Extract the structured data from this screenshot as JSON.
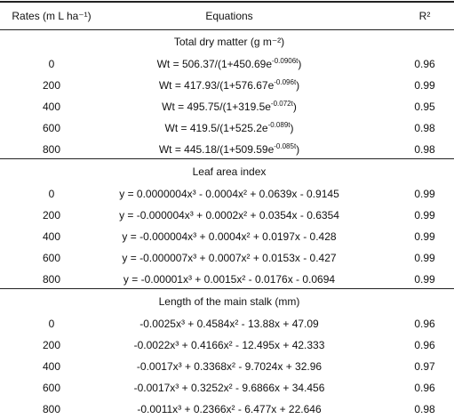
{
  "header": {
    "rates": "Rates (m L ha⁻¹)",
    "equations": "Equations",
    "r2": "R²"
  },
  "sections": [
    {
      "title": "Total dry matter (g m⁻²)",
      "rows": [
        {
          "rate": 0,
          "equation": [
            "Wt = 506.37/(1+450.69e",
            "-0.0906t",
            ")"
          ],
          "r2": 0.96
        },
        {
          "rate": 200,
          "equation": [
            "Wt = 417.93/(1+576.67e",
            "-0.096t",
            ")"
          ],
          "r2": 0.99
        },
        {
          "rate": 400,
          "equation": [
            "Wt = 495.75/(1+319.5e",
            "-0.072t",
            ")"
          ],
          "r2": 0.95
        },
        {
          "rate": 600,
          "equation": [
            "Wt = 419.5/(1+525.2e",
            "-0.089t",
            ")"
          ],
          "r2": 0.98
        },
        {
          "rate": 800,
          "equation": [
            "Wt = 445.18/(1+509.59e",
            "-0.085t",
            ")"
          ],
          "r2": 0.98
        }
      ]
    },
    {
      "title": "Leaf area index",
      "rows": [
        {
          "rate": 0,
          "equation": [
            "y = 0.0000004x³ - 0.0004x² + 0.0639x - 0.9145"
          ],
          "r2": 0.99
        },
        {
          "rate": 200,
          "equation": [
            "y = -0.000004x³ + 0.0002x² + 0.0354x - 0.6354"
          ],
          "r2": 0.99
        },
        {
          "rate": 400,
          "equation": [
            "y = -0.000004x³ + 0.0004x² + 0.0197x - 0.428"
          ],
          "r2": 0.99
        },
        {
          "rate": 600,
          "equation": [
            "y = -0.000007x³ + 0.0007x² + 0.0153x - 0.427"
          ],
          "r2": 0.99
        },
        {
          "rate": 800,
          "equation": [
            "y = -0.00001x³ + 0.0015x² - 0.0176x - 0.0694"
          ],
          "r2": 0.99
        }
      ]
    },
    {
      "title": "Length of the main stalk (mm)",
      "rows": [
        {
          "rate": 0,
          "equation": [
            "-0.0025x³ + 0.4584x² - 13.88x + 47.09"
          ],
          "r2": 0.96
        },
        {
          "rate": 200,
          "equation": [
            "-0.0022x³ + 0.4166x² - 12.495x + 42.333"
          ],
          "r2": 0.96
        },
        {
          "rate": 400,
          "equation": [
            "-0.0017x³ + 0.3368x² - 9.7024x + 32.96"
          ],
          "r2": 0.97
        },
        {
          "rate": 600,
          "equation": [
            "-0.0017x³ + 0.3252x² - 9.6866x + 34.456"
          ],
          "r2": 0.96
        },
        {
          "rate": 800,
          "equation": [
            "-0.0011x³ + 0.2366x² - 6.477x + 22.646"
          ],
          "r2": 0.98
        }
      ]
    }
  ]
}
